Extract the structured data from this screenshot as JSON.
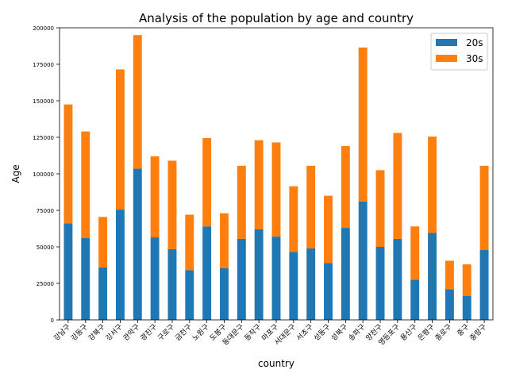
{
  "chart_data": {
    "type": "bar",
    "stacked": true,
    "title": "Analysis of the population by age and country",
    "xlabel": "country",
    "ylabel": "Age",
    "ylim": [
      0,
      200000
    ],
    "yticks": [
      0,
      25000,
      50000,
      75000,
      100000,
      125000,
      150000,
      175000,
      200000
    ],
    "legend_position": "top-right",
    "grid": false,
    "categories": [
      "강남구",
      "강동구",
      "강북구",
      "강서구",
      "관악구",
      "광진구",
      "구로구",
      "금천구",
      "노원구",
      "도봉구",
      "동대문구",
      "동작구",
      "마포구",
      "서대문구",
      "서초구",
      "성동구",
      "성북구",
      "송파구",
      "양천구",
      "영등포구",
      "용산구",
      "은평구",
      "종로구",
      "중구",
      "중랑구"
    ],
    "series": [
      {
        "name": "20s",
        "color": "#1f77b4",
        "values": [
          66000,
          56000,
          36000,
          75500,
          103500,
          56500,
          48500,
          34000,
          64000,
          35500,
          55500,
          62000,
          57000,
          46500,
          49000,
          39000,
          63000,
          81000,
          50000,
          55500,
          27500,
          59500,
          21000,
          16500,
          48000
        ]
      },
      {
        "name": "30s",
        "color": "#ff7f0e",
        "values": [
          81500,
          73000,
          34500,
          96000,
          91500,
          55500,
          60500,
          38000,
          60500,
          37500,
          50000,
          61000,
          64500,
          45000,
          56500,
          46000,
          56000,
          105500,
          52500,
          72500,
          36500,
          66000,
          19500,
          21500,
          57500
        ]
      }
    ]
  }
}
